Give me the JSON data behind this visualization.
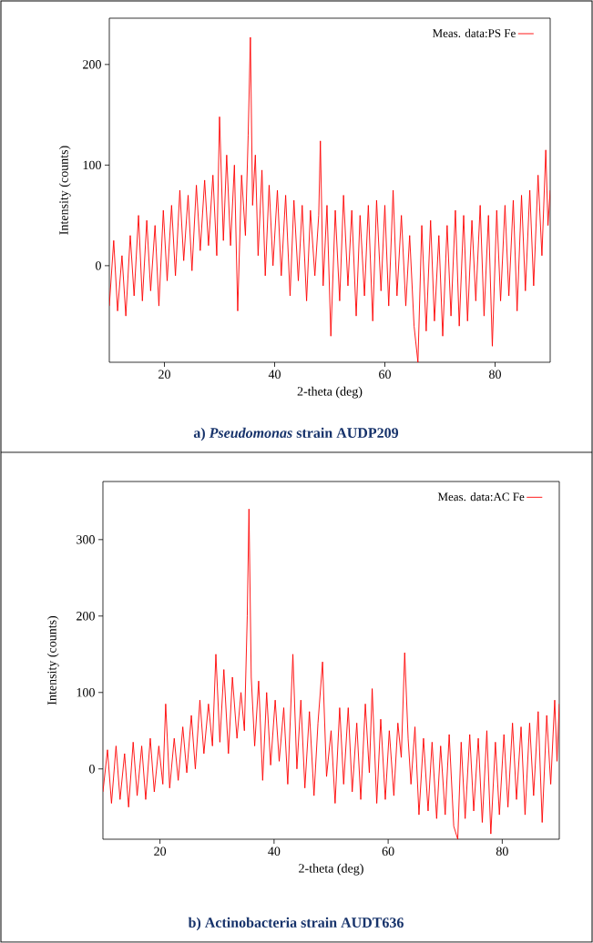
{
  "chart_data": [
    {
      "type": "line",
      "title": "a)  *Pseudomonas* strain AUDP209",
      "xlabel": "2-theta (deg)",
      "ylabel": "Intensity (counts)",
      "legend": "top right",
      "marker": "none",
      "xlim": [
        10,
        90
      ],
      "ylim": [
        -96,
        246
      ],
      "xticks": [
        20,
        40,
        60,
        80
      ],
      "yticks": [
        0,
        100,
        200
      ],
      "x": [
        10,
        10.8,
        11.5,
        12.3,
        13,
        13.8,
        14.5,
        15.3,
        16,
        16.8,
        17.5,
        18.3,
        19,
        19.8,
        20.5,
        21.3,
        22,
        22.8,
        23.5,
        24.3,
        25,
        25.8,
        26.5,
        27.3,
        28,
        28.8,
        29.5,
        30,
        30.7,
        31.3,
        32,
        32.7,
        33.3,
        34,
        34.7,
        35.2,
        35.6,
        36,
        36.5,
        37,
        37.7,
        38.3,
        39,
        39.7,
        40.5,
        41.2,
        42,
        42.8,
        43.5,
        44.3,
        45,
        45.8,
        46.5,
        47.3,
        48,
        48.3,
        48.8,
        49.5,
        50.2,
        51,
        51.8,
        52.5,
        53.3,
        54,
        54.8,
        55.5,
        56.3,
        57,
        57.8,
        58.5,
        59.3,
        60,
        60.7,
        61.5,
        62.2,
        63,
        63.8,
        64.5,
        65.3,
        66,
        66.7,
        67.5,
        68.3,
        69,
        69.8,
        70.5,
        71.3,
        72,
        72.8,
        73.5,
        74.3,
        75,
        75.8,
        76.5,
        77.3,
        78,
        78.8,
        79.5,
        80.3,
        81,
        81.8,
        82.5,
        83.3,
        84,
        84.8,
        85.5,
        86.3,
        87,
        87.8,
        88.5,
        89.2,
        89.6,
        90
      ],
      "series": [
        {
          "name": "Meas. data:PS Fe",
          "color": "#ff0000",
          "values": [
            -40,
            25,
            -45,
            10,
            -50,
            30,
            -30,
            50,
            -35,
            45,
            -25,
            40,
            -40,
            55,
            -15,
            60,
            -10,
            75,
            5,
            70,
            -5,
            80,
            15,
            85,
            20,
            90,
            10,
            148,
            25,
            110,
            20,
            100,
            -45,
            90,
            30,
            130,
            227,
            60,
            110,
            10,
            95,
            -10,
            80,
            0,
            75,
            -10,
            70,
            -30,
            65,
            -15,
            60,
            -35,
            55,
            -10,
            50,
            124,
            -20,
            60,
            -70,
            55,
            -35,
            70,
            -20,
            55,
            -50,
            50,
            -30,
            60,
            -55,
            65,
            -25,
            60,
            -40,
            75,
            -30,
            50,
            -40,
            30,
            -60,
            -96,
            40,
            -65,
            45,
            -55,
            30,
            -70,
            40,
            -50,
            55,
            -60,
            50,
            -55,
            45,
            -35,
            60,
            -50,
            50,
            -80,
            55,
            -35,
            60,
            -30,
            65,
            -45,
            70,
            -25,
            75,
            -20,
            90,
            10,
            115,
            40,
            75
          ]
        }
      ]
    },
    {
      "type": "line",
      "title": "b) Actinobacteria strain AUDT636",
      "xlabel": "2-theta (deg)",
      "ylabel": "Intensity (counts)",
      "legend": "top right",
      "marker": "none",
      "xlim": [
        10,
        90
      ],
      "ylim": [
        -92,
        376
      ],
      "xticks": [
        20,
        40,
        60,
        80
      ],
      "yticks": [
        0,
        100,
        200,
        300
      ],
      "x": [
        10,
        10.8,
        11.5,
        12.3,
        13,
        13.8,
        14.5,
        15.3,
        16,
        16.8,
        17.5,
        18.3,
        19,
        19.8,
        20.5,
        21,
        21.7,
        22.5,
        23.2,
        24,
        24.7,
        25.5,
        26.2,
        27,
        27.7,
        28.5,
        29.2,
        29.8,
        30.5,
        31.2,
        32,
        32.7,
        33.5,
        34.2,
        34.8,
        35.3,
        35.6,
        36,
        36.6,
        37.3,
        38,
        38.7,
        39.4,
        40.2,
        40.9,
        41.7,
        42.4,
        43.3,
        44,
        44.7,
        45.4,
        46.2,
        47,
        47.7,
        48.5,
        49.2,
        50,
        50.7,
        51.5,
        52.2,
        53,
        53.7,
        54.5,
        55.2,
        56,
        56.7,
        57.2,
        58,
        58.7,
        59.5,
        60.2,
        61,
        61.7,
        62.3,
        62.9,
        63.5,
        64,
        64.7,
        65.4,
        66.2,
        67,
        67.7,
        68.5,
        69.2,
        70,
        70.7,
        71.5,
        72.2,
        72.8,
        73.5,
        74.3,
        75,
        75.8,
        76.5,
        77.3,
        78,
        78.8,
        79.5,
        80.3,
        81,
        81.8,
        82.5,
        83.3,
        84,
        84.8,
        85.5,
        86.3,
        87,
        87.8,
        88.5,
        89.2,
        89.6,
        90
      ],
      "series": [
        {
          "name": "Meas. data:AC Fe",
          "color": "#ff0000",
          "values": [
            -30,
            25,
            -45,
            30,
            -40,
            20,
            -50,
            35,
            -35,
            30,
            -40,
            40,
            -30,
            30,
            -20,
            85,
            -25,
            40,
            -15,
            55,
            -5,
            70,
            0,
            90,
            20,
            85,
            30,
            150,
            35,
            130,
            20,
            120,
            40,
            100,
            50,
            200,
            340,
            120,
            30,
            115,
            -15,
            100,
            5,
            90,
            10,
            80,
            -20,
            150,
            0,
            90,
            -25,
            75,
            -35,
            60,
            140,
            -10,
            50,
            -45,
            80,
            -20,
            80,
            -30,
            60,
            -40,
            85,
            -5,
            105,
            -45,
            65,
            -40,
            50,
            -35,
            60,
            15,
            152,
            40,
            -20,
            55,
            -60,
            40,
            -55,
            35,
            -65,
            30,
            -60,
            45,
            -75,
            -92,
            35,
            -65,
            45,
            -55,
            40,
            -70,
            50,
            -85,
            35,
            -60,
            45,
            -50,
            60,
            -40,
            55,
            -60,
            60,
            -35,
            75,
            -70,
            70,
            -20,
            90,
            10,
            85
          ]
        }
      ]
    }
  ]
}
